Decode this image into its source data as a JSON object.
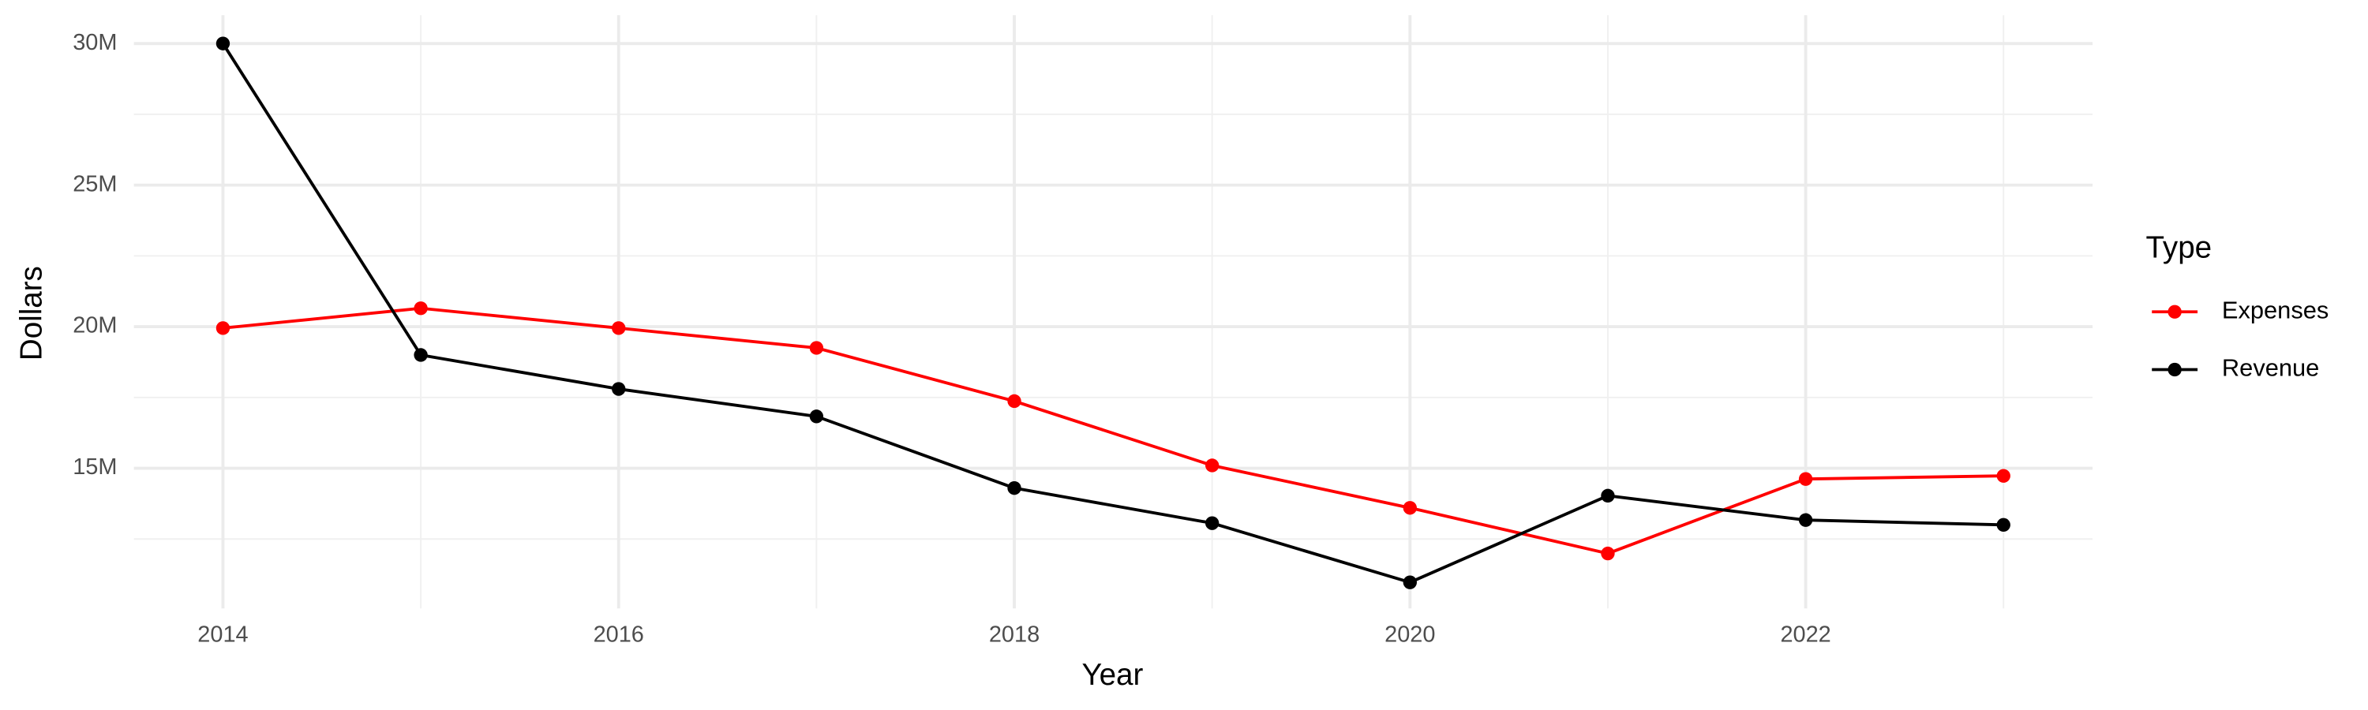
{
  "chart_data": {
    "type": "line",
    "x_label": "Year",
    "y_label": "Dollars",
    "legend_title": "Type",
    "legend_position": "right",
    "x": [
      2014,
      2015,
      2016,
      2017,
      2018,
      2019,
      2020,
      2021,
      2022,
      2023
    ],
    "series": [
      {
        "name": "Expenses",
        "color": "#ff0000",
        "values": [
          19950000,
          20650000,
          19950000,
          19250000,
          17370000,
          15100000,
          13600000,
          11990000,
          14620000,
          14730000
        ]
      },
      {
        "name": "Revenue",
        "color": "#000000",
        "values": [
          30000000,
          19000000,
          17800000,
          16830000,
          14300000,
          13060000,
          10970000,
          14030000,
          13170000,
          13000000
        ]
      }
    ],
    "xlim": [
      2013.55,
      2023.45
    ],
    "ylim": [
      10050000,
      31000000
    ],
    "xticks": [
      2014,
      2016,
      2018,
      2020,
      2022
    ],
    "xminor": [
      2015,
      2017,
      2019,
      2021,
      2023
    ],
    "yticks": [
      {
        "value": 15000000,
        "label": "15M"
      },
      {
        "value": 20000000,
        "label": "20M"
      },
      {
        "value": 25000000,
        "label": "25M"
      },
      {
        "value": 30000000,
        "label": "30M"
      }
    ],
    "yminor": [
      12500000,
      17500000,
      22500000,
      27500000
    ],
    "grid": true
  }
}
